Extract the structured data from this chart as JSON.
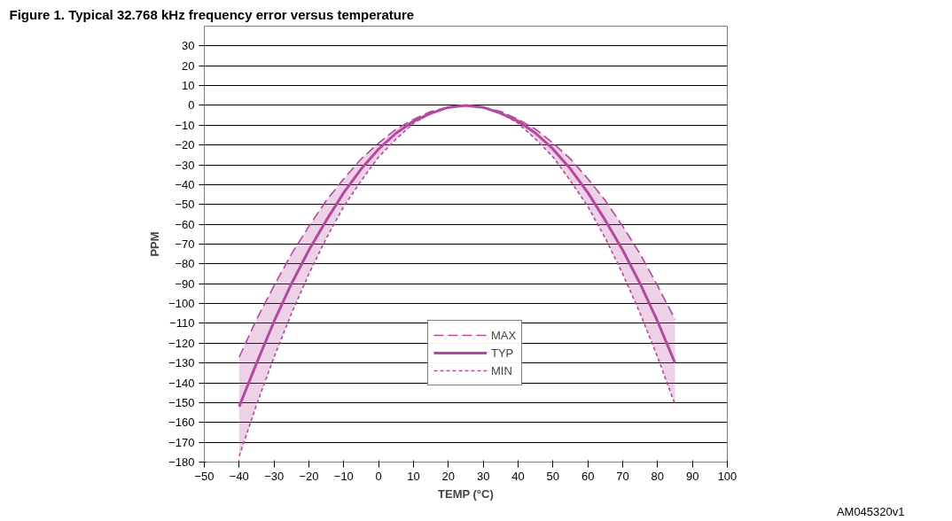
{
  "chart_data": {
    "type": "line",
    "title": "Figure 1.      Typical 32.768 kHz frequency error versus temperature",
    "xlabel": "TEMP (°C)",
    "ylabel": "PPM",
    "annotations": [
      "AM045320v1"
    ],
    "x": [
      -40,
      -35,
      -30,
      -25,
      -20,
      -15,
      -10,
      -5,
      0,
      5,
      10,
      15,
      20,
      25,
      30,
      35,
      40,
      45,
      50,
      55,
      60,
      65,
      70,
      75,
      80,
      85
    ],
    "series": [
      {
        "name": "MAX",
        "color": "#b5479e",
        "line_style": "dashed",
        "values": [
          -127,
          -108,
          -91,
          -75,
          -61,
          -48,
          -37,
          -27,
          -19,
          -12,
          -7,
          -3,
          -1,
          0,
          -1,
          -3,
          -7,
          -12,
          -19,
          -27,
          -37,
          -48,
          -61,
          -75,
          -91,
          -108
        ]
      },
      {
        "name": "TYP",
        "color": "#b5479e",
        "line_style": "solid",
        "values": [
          -152,
          -130,
          -109,
          -90,
          -73,
          -58,
          -44,
          -32,
          -22,
          -14,
          -8,
          -4,
          -1,
          0,
          -1,
          -4,
          -8,
          -14,
          -22,
          -32,
          -44,
          -58,
          -73,
          -90,
          -109,
          -130
        ],
        "lower": [
          -177,
          -151,
          -127,
          -105,
          -85,
          -67,
          -51,
          -38,
          -26,
          -17,
          -9,
          -4,
          -1,
          0,
          -1,
          -4,
          -9,
          -17,
          -26,
          -38,
          -51,
          -67,
          -85,
          -105,
          -127,
          -151
        ],
        "upper": [
          -127,
          -108,
          -91,
          -75,
          -61,
          -48,
          -37,
          -27,
          -19,
          -12,
          -7,
          -3,
          -1,
          0,
          -1,
          -3,
          -7,
          -12,
          -19,
          -27,
          -37,
          -48,
          -61,
          -75,
          -91,
          -108
        ]
      },
      {
        "name": "MIN",
        "color": "#b5479e",
        "line_style": "dotted",
        "values": [
          -177,
          -151,
          -127,
          -105,
          -85,
          -67,
          -51,
          -38,
          -26,
          -17,
          -9,
          -4,
          -1,
          0,
          -1,
          -4,
          -9,
          -17,
          -26,
          -38,
          -51,
          -67,
          -85,
          -105,
          -127,
          -151
        ]
      }
    ],
    "xlim": [
      -50,
      100
    ],
    "xticks": [
      -50,
      -40,
      -30,
      -20,
      -10,
      0,
      10,
      20,
      30,
      40,
      50,
      60,
      70,
      80,
      90,
      100
    ],
    "ylim": [
      -180,
      40
    ],
    "yticks": [
      -180,
      -170,
      -160,
      -150,
      -140,
      -130,
      -120,
      -110,
      -100,
      -90,
      -80,
      -70,
      -60,
      -50,
      -40,
      -30,
      -20,
      -10,
      0,
      10,
      20,
      30
    ],
    "grid": "y",
    "legend": "bottom",
    "marker": "none"
  }
}
